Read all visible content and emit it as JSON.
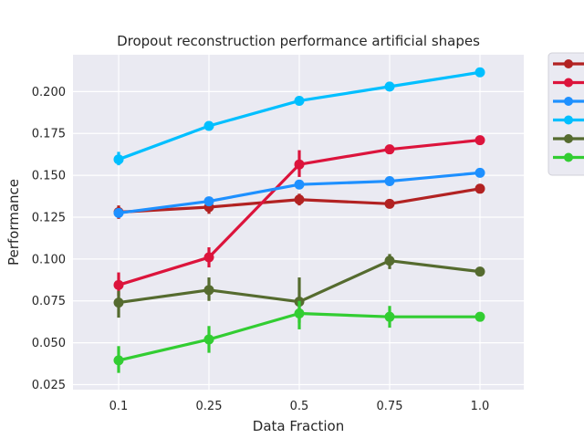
{
  "chart_data": {
    "type": "line",
    "title": "Dropout reconstruction performance artificial shapes",
    "xlabel": "Data Fraction",
    "ylabel": "Performance",
    "categories": [
      "0.1",
      "0.25",
      "0.5",
      "0.75",
      "1.0"
    ],
    "ylim": [
      0.022,
      0.222
    ],
    "yticks": [
      "0.025",
      "0.050",
      "0.075",
      "0.100",
      "0.125",
      "0.150",
      "0.175",
      "0.200"
    ],
    "grid": true,
    "legend_placement": "outside-top-right",
    "series": [
      {
        "color": "#b22222",
        "values": [
          0.128,
          0.131,
          0.1355,
          0.133,
          0.142
        ],
        "err": [
          [
            0.124,
            0.132
          ],
          [
            0.127,
            0.135
          ],
          [
            0.132,
            0.139
          ],
          [
            0.131,
            0.135
          ],
          [
            0.14,
            0.144
          ]
        ]
      },
      {
        "color": "#dc143c",
        "values": [
          0.0845,
          0.101,
          0.1565,
          0.1655,
          0.171
        ],
        "err": [
          [
            0.078,
            0.092
          ],
          [
            0.095,
            0.107
          ],
          [
            0.149,
            0.165
          ],
          [
            0.164,
            0.167
          ],
          [
            0.17,
            0.172
          ]
        ]
      },
      {
        "color": "#1e90ff",
        "values": [
          0.1275,
          0.1345,
          0.1445,
          0.1465,
          0.1515
        ],
        "err": [
          [
            0.126,
            0.129
          ],
          [
            0.133,
            0.136
          ],
          [
            0.143,
            0.146
          ],
          [
            0.145,
            0.148
          ],
          [
            0.15,
            0.153
          ]
        ]
      },
      {
        "color": "#00bfff",
        "values": [
          0.1595,
          0.1795,
          0.1945,
          0.203,
          0.2115
        ],
        "err": [
          [
            0.156,
            0.164
          ],
          [
            0.178,
            0.181
          ],
          [
            0.193,
            0.196
          ],
          [
            0.201,
            0.205
          ],
          [
            0.21,
            0.213
          ]
        ]
      },
      {
        "color": "#556b2f",
        "values": [
          0.074,
          0.0815,
          0.0745,
          0.099,
          0.0925
        ],
        "err": [
          [
            0.065,
            0.081
          ],
          [
            0.075,
            0.089
          ],
          [
            0.062,
            0.089
          ],
          [
            0.094,
            0.103
          ],
          [
            0.091,
            0.094
          ]
        ]
      },
      {
        "color": "#32cd32",
        "values": [
          0.0395,
          0.052,
          0.0675,
          0.0655,
          0.0655
        ],
        "err": [
          [
            0.032,
            0.048
          ],
          [
            0.044,
            0.06
          ],
          [
            0.058,
            0.075
          ],
          [
            0.059,
            0.072
          ],
          [
            0.064,
            0.067
          ]
        ]
      }
    ]
  }
}
